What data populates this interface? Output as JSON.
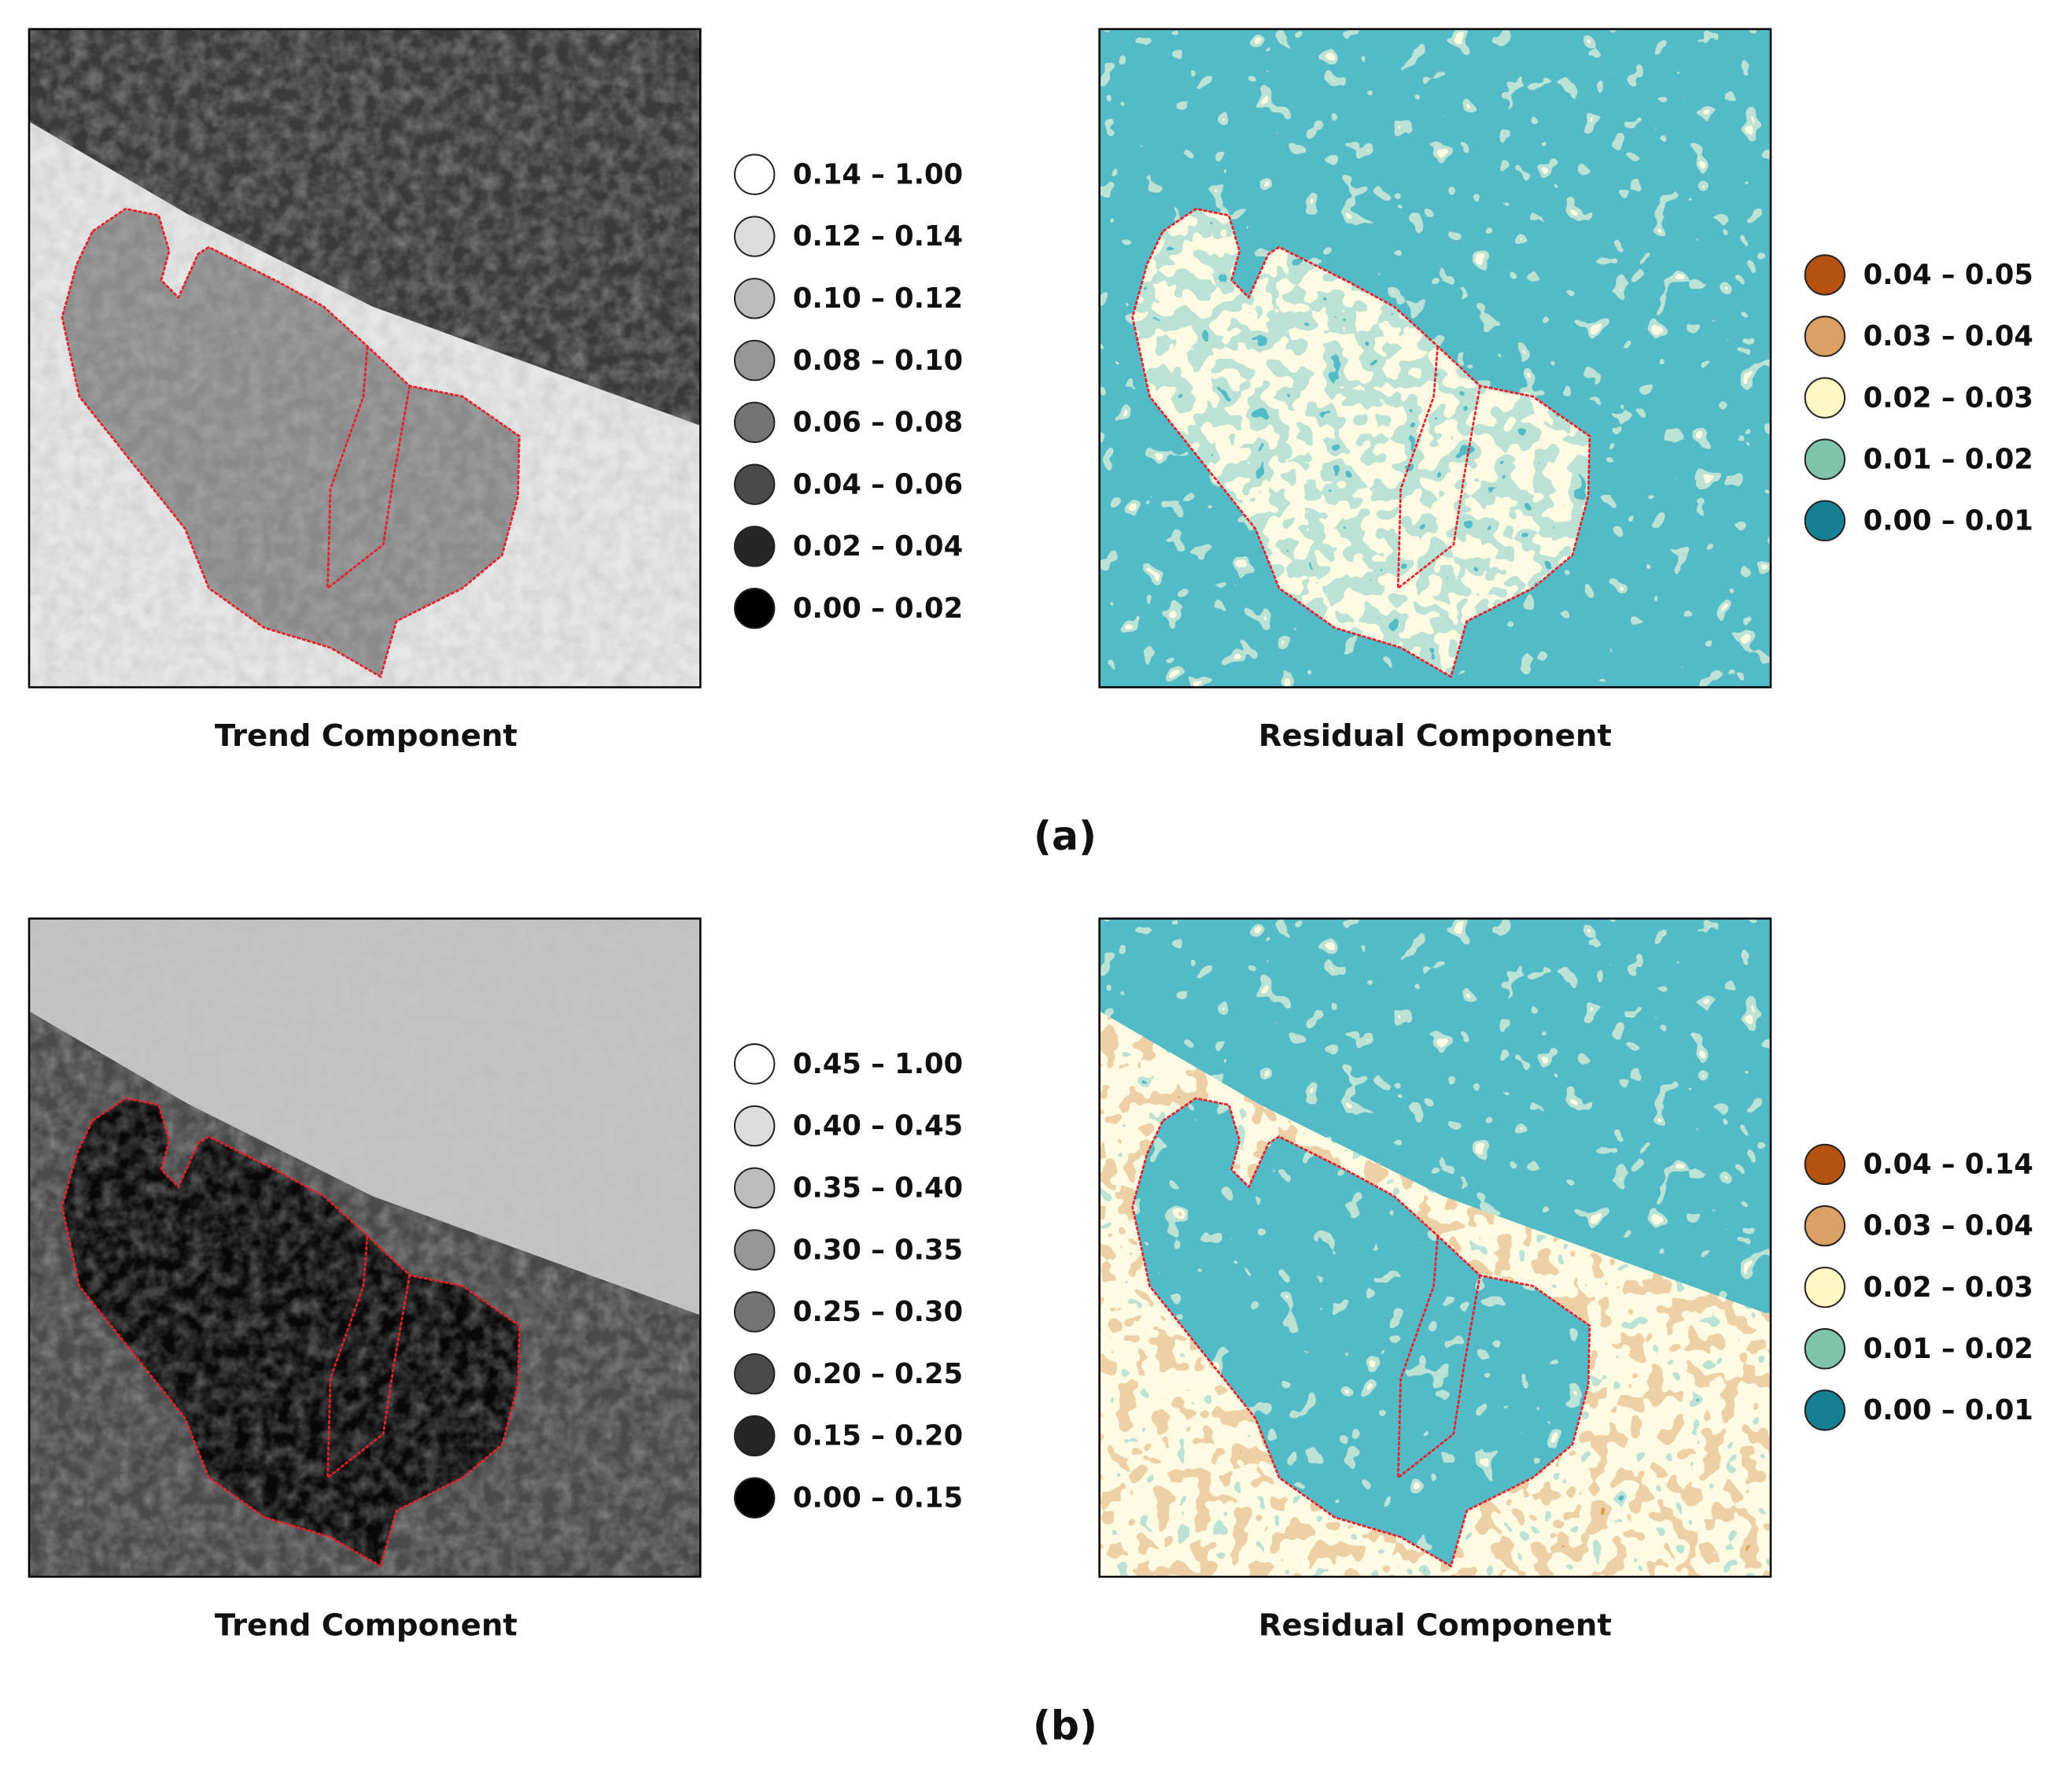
{
  "panels": [
    {
      "label": "(a)",
      "trend": {
        "caption": "Trend Component",
        "legend": [
          {
            "label": "0.14 – 1.00",
            "color": "#ffffff"
          },
          {
            "label": "0.12 – 0.14",
            "color": "#dcdcdc"
          },
          {
            "label": "0.10 – 0.12",
            "color": "#bdbdbd"
          },
          {
            "label": "0.08 – 0.10",
            "color": "#969696"
          },
          {
            "label": "0.06 – 0.08",
            "color": "#737373"
          },
          {
            "label": "0.04 – 0.06",
            "color": "#4a4a4a"
          },
          {
            "label": "0.02 – 0.04",
            "color": "#262626"
          },
          {
            "label": "0.00 – 0.02",
            "color": "#000000"
          }
        ]
      },
      "residual": {
        "caption": "Residual Component",
        "legend": [
          {
            "label": "0.04 – 0.05",
            "color": "#b5520f"
          },
          {
            "label": "0.03 – 0.04",
            "color": "#dca064"
          },
          {
            "label": "0.02 – 0.03",
            "color": "#fff8c2"
          },
          {
            "label": "0.01 – 0.02",
            "color": "#7fc3a9"
          },
          {
            "label": "0.00 – 0.01",
            "color": "#167f92"
          }
        ]
      }
    },
    {
      "label": "(b)",
      "trend": {
        "caption": "Trend Component",
        "legend": [
          {
            "label": "0.45 – 1.00",
            "color": "#ffffff"
          },
          {
            "label": "0.40 – 0.45",
            "color": "#dcdcdc"
          },
          {
            "label": "0.35 – 0.40",
            "color": "#bdbdbd"
          },
          {
            "label": "0.30 – 0.35",
            "color": "#969696"
          },
          {
            "label": "0.25 – 0.30",
            "color": "#737373"
          },
          {
            "label": "0.20 – 0.25",
            "color": "#4a4a4a"
          },
          {
            "label": "0.15 – 0.20",
            "color": "#262626"
          },
          {
            "label": "0.00 – 0.15",
            "color": "#000000"
          }
        ]
      },
      "residual": {
        "caption": "Residual Component",
        "legend": [
          {
            "label": "0.04 – 0.14",
            "color": "#b5520f"
          },
          {
            "label": "0.03 – 0.04",
            "color": "#dca064"
          },
          {
            "label": "0.02 – 0.03",
            "color": "#fff8c2"
          },
          {
            "label": "0.01 – 0.02",
            "color": "#7fc3a9"
          },
          {
            "label": "0.00 – 0.01",
            "color": "#167f92"
          }
        ]
      }
    }
  ]
}
